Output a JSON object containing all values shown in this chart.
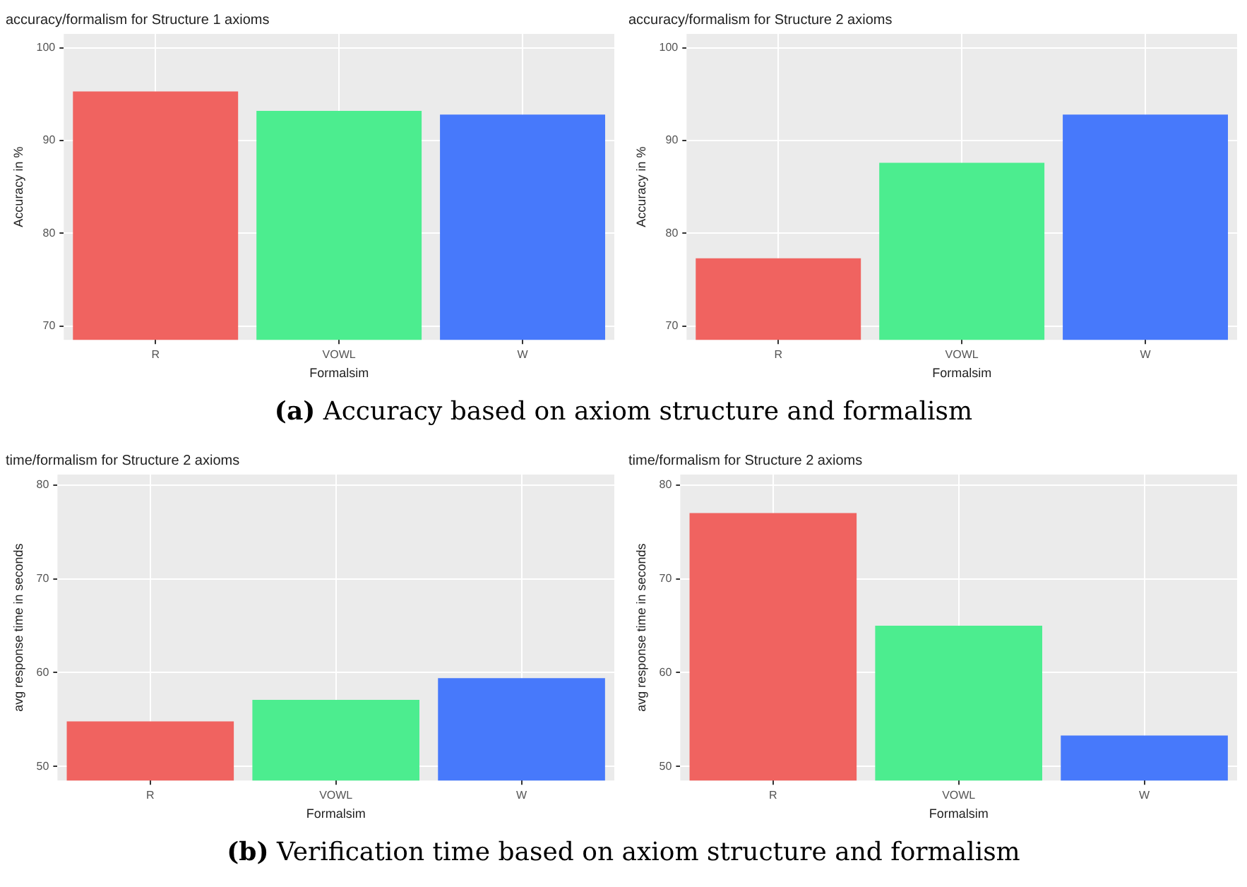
{
  "chart_data": [
    {
      "type": "bar",
      "title": "accuracy/formalism for Structure 1 axioms",
      "xlabel": "Formalsim",
      "ylabel": "Accuracy in %",
      "categories": [
        "R",
        "VOWL",
        "W"
      ],
      "values": [
        95.3,
        93.2,
        92.8
      ],
      "colors": [
        "#f06360",
        "#4ced8f",
        "#4779fb"
      ],
      "ylim": [
        68.5,
        101.5
      ],
      "yticks": [
        70,
        80,
        90,
        100
      ],
      "grid": true,
      "annotations": [
        "(a) Accuracy based on axiom structure and formalism"
      ]
    },
    {
      "type": "bar",
      "title": "accuracy/formalism for Structure 2 axioms",
      "xlabel": "Formalsim",
      "ylabel": "Accuracy in %",
      "categories": [
        "R",
        "VOWL",
        "W"
      ],
      "values": [
        77.3,
        87.6,
        92.8
      ],
      "colors": [
        "#f06360",
        "#4ced8f",
        "#4779fb"
      ],
      "ylim": [
        68.5,
        101.5
      ],
      "yticks": [
        70,
        80,
        90,
        100
      ],
      "grid": true
    },
    {
      "type": "bar",
      "title": "time/formalism for Structure 2 axioms",
      "xlabel": "Formalsim",
      "ylabel": "avg response time in seconds",
      "categories": [
        "R",
        "VOWL",
        "W"
      ],
      "values": [
        54.8,
        57.1,
        59.4
      ],
      "colors": [
        "#f06360",
        "#4ced8f",
        "#4779fb"
      ],
      "ylim": [
        48.5,
        81.1
      ],
      "yticks": [
        50,
        60,
        70,
        80
      ],
      "grid": true,
      "annotations": [
        "(b) Verification time based on axiom structure and formalism"
      ]
    },
    {
      "type": "bar",
      "title": "time/formalism for Structure 2 axioms",
      "xlabel": "Formalsim",
      "ylabel": "avg response time in seconds",
      "categories": [
        "R",
        "VOWL",
        "W"
      ],
      "values": [
        77.0,
        65.0,
        53.3
      ],
      "colors": [
        "#f06360",
        "#4ced8f",
        "#4779fb"
      ],
      "ylim": [
        48.5,
        81.1
      ],
      "yticks": [
        50,
        60,
        70,
        80
      ],
      "grid": true
    }
  ]
}
